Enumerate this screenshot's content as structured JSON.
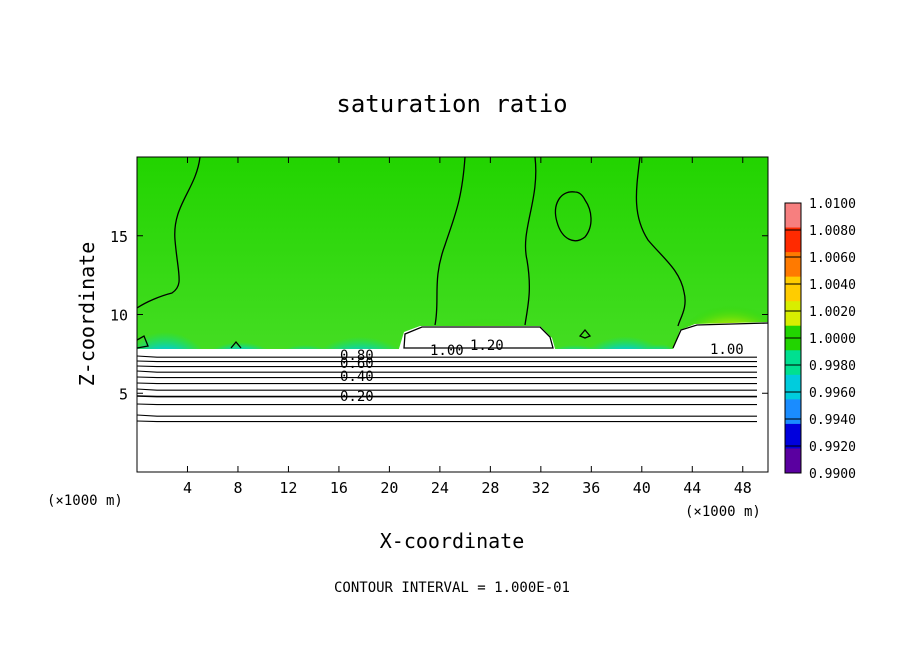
{
  "chart_data": {
    "type": "heatmap",
    "title": "saturation ratio",
    "xlabel": "X-coordinate",
    "ylabel": "Z-coordinate",
    "x_unit_left": "(×1000 m)",
    "x_unit_right": "(×1000 m)",
    "xlim": [
      0,
      50
    ],
    "ylim": [
      0,
      20
    ],
    "xticks": [
      4,
      8,
      12,
      16,
      20,
      24,
      28,
      32,
      36,
      40,
      44,
      48
    ],
    "yticks": [
      5,
      10,
      15
    ],
    "colorbar": {
      "min": 0.99,
      "max": 1.01,
      "labels": [
        "1.0100",
        "1.0080",
        "1.0060",
        "1.0040",
        "1.0020",
        "1.0000",
        "0.9980",
        "0.9960",
        "0.9940",
        "0.9920",
        "0.9900"
      ],
      "colors": [
        "#f77f7f",
        "#ff2a00",
        "#ff7a00",
        "#ffcc00",
        "#d8ee00",
        "#22d400",
        "#00e090",
        "#00ccdd",
        "#1a8cff",
        "#0000dd",
        "#5a00a0"
      ]
    },
    "contour_labels": [
      "0.80",
      "0.60",
      "0.40",
      "0.20",
      "1.00",
      "1.20",
      "1.00"
    ],
    "contour_interval": "CONTOUR INTERVAL = 1.000E-01"
  }
}
